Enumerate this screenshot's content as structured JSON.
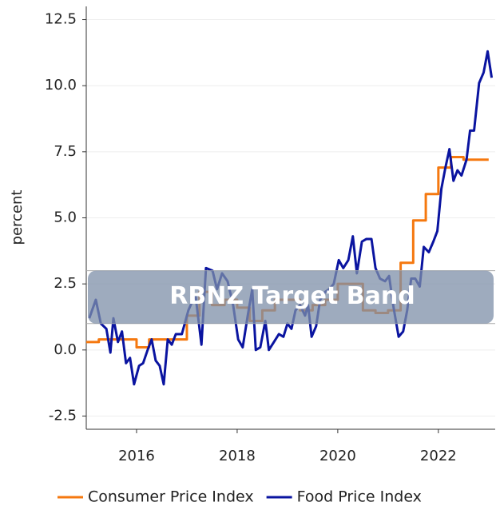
{
  "chart_data": {
    "type": "line",
    "ylabel": "percent",
    "xlim": [
      2015,
      2023.13
    ],
    "ylim": [
      -3,
      13
    ],
    "xticks": [
      2016,
      2018,
      2020,
      2022
    ],
    "yticks": [
      {
        "value": -2.5,
        "label": "-2.5"
      },
      {
        "value": 0,
        "label": "0.0"
      },
      {
        "value": 2.5,
        "label": "2.5"
      },
      {
        "value": 5,
        "label": "5.0"
      },
      {
        "value": 7.5,
        "label": "7.5"
      },
      {
        "value": 10,
        "label": "10.0"
      },
      {
        "value": 12.5,
        "label": "12.5"
      }
    ],
    "grid": true,
    "legend": "bottom",
    "band": {
      "from": 1,
      "to": 3,
      "label": "RBNZ Target Band",
      "color": "#7d8fa8"
    },
    "series": [
      {
        "name": "Consumer Price Index",
        "color": "#f5780f",
        "step": true,
        "x": [
          2015.0,
          2015.25,
          2015.5,
          2015.75,
          2016.0,
          2016.25,
          2016.5,
          2016.75,
          2017.0,
          2017.25,
          2017.5,
          2017.75,
          2018.0,
          2018.25,
          2018.5,
          2018.75,
          2019.0,
          2019.25,
          2019.5,
          2019.75,
          2020.0,
          2020.25,
          2020.5,
          2020.75,
          2021.0,
          2021.25,
          2021.5,
          2021.75,
          2022.0,
          2022.25,
          2022.5,
          2022.75,
          2023.0
        ],
        "values": [
          0.3,
          0.4,
          0.4,
          0.4,
          0.1,
          0.4,
          0.4,
          0.4,
          1.3,
          2.2,
          1.7,
          1.9,
          1.6,
          1.1,
          1.5,
          1.9,
          1.9,
          1.5,
          1.7,
          1.9,
          2.5,
          2.5,
          1.5,
          1.4,
          1.5,
          3.3,
          4.9,
          5.9,
          6.9,
          7.3,
          7.2,
          7.2,
          7.2
        ]
      },
      {
        "name": "Food Price Index",
        "color": "#0a14a0",
        "step": false,
        "x": [
          2015.06,
          2015.19,
          2015.29,
          2015.4,
          2015.48,
          2015.54,
          2015.63,
          2015.71,
          2015.79,
          2015.87,
          2015.95,
          2016.05,
          2016.13,
          2016.22,
          2016.3,
          2016.38,
          2016.46,
          2016.54,
          2016.62,
          2016.7,
          2016.78,
          2016.9,
          2017.03,
          2017.17,
          2017.29,
          2017.38,
          2017.51,
          2017.6,
          2017.7,
          2017.81,
          2017.92,
          2018.02,
          2018.11,
          2018.21,
          2018.3,
          2018.37,
          2018.46,
          2018.56,
          2018.63,
          2018.73,
          2018.83,
          2018.92,
          2019.0,
          2019.08,
          2019.16,
          2019.25,
          2019.35,
          2019.41,
          2019.48,
          2019.57,
          2019.65,
          2019.75,
          2019.83,
          2019.92,
          2020.02,
          2020.11,
          2020.21,
          2020.3,
          2020.38,
          2020.48,
          2020.57,
          2020.67,
          2020.75,
          2020.84,
          2020.94,
          2021.02,
          2021.11,
          2021.21,
          2021.3,
          2021.38,
          2021.46,
          2021.54,
          2021.63,
          2021.71,
          2021.81,
          2021.9,
          2021.98,
          2022.06,
          2022.14,
          2022.22,
          2022.3,
          2022.38,
          2022.46,
          2022.56,
          2022.63,
          2022.71,
          2022.81,
          2022.9,
          2022.98,
          2023.06
        ],
        "values": [
          1.2,
          1.9,
          1.0,
          0.8,
          -0.1,
          1.2,
          0.3,
          0.7,
          -0.5,
          -0.3,
          -1.3,
          -0.6,
          -0.5,
          0.0,
          0.4,
          -0.4,
          -0.6,
          -1.3,
          0.4,
          0.2,
          0.6,
          0.6,
          1.5,
          2.1,
          0.2,
          3.1,
          3.0,
          2.3,
          2.9,
          2.6,
          1.7,
          0.4,
          0.1,
          1.3,
          2.3,
          0.0,
          0.1,
          1.1,
          0.0,
          0.3,
          0.6,
          0.5,
          1.0,
          0.8,
          1.5,
          1.7,
          1.3,
          1.7,
          0.5,
          0.9,
          1.9,
          2.2,
          2.3,
          2.5,
          3.4,
          3.1,
          3.4,
          4.3,
          2.9,
          4.1,
          4.2,
          4.2,
          3.1,
          2.7,
          2.6,
          2.8,
          1.6,
          0.5,
          0.7,
          1.5,
          2.7,
          2.7,
          2.4,
          3.9,
          3.7,
          4.1,
          4.5,
          6.1,
          6.9,
          7.6,
          6.4,
          6.8,
          6.6,
          7.2,
          8.3,
          8.3,
          10.1,
          10.5,
          11.3,
          10.3
        ]
      }
    ]
  }
}
